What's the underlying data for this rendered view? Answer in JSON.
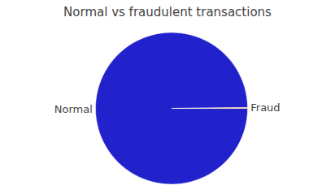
{
  "chart_data": {
    "type": "pie",
    "title": "Normal vs fraudulent transactions",
    "categories": [
      "Normal",
      "Fraud"
    ],
    "values": [
      99.827,
      0.173
    ],
    "colors": [
      "#2222cc",
      "#ff8c00"
    ]
  }
}
